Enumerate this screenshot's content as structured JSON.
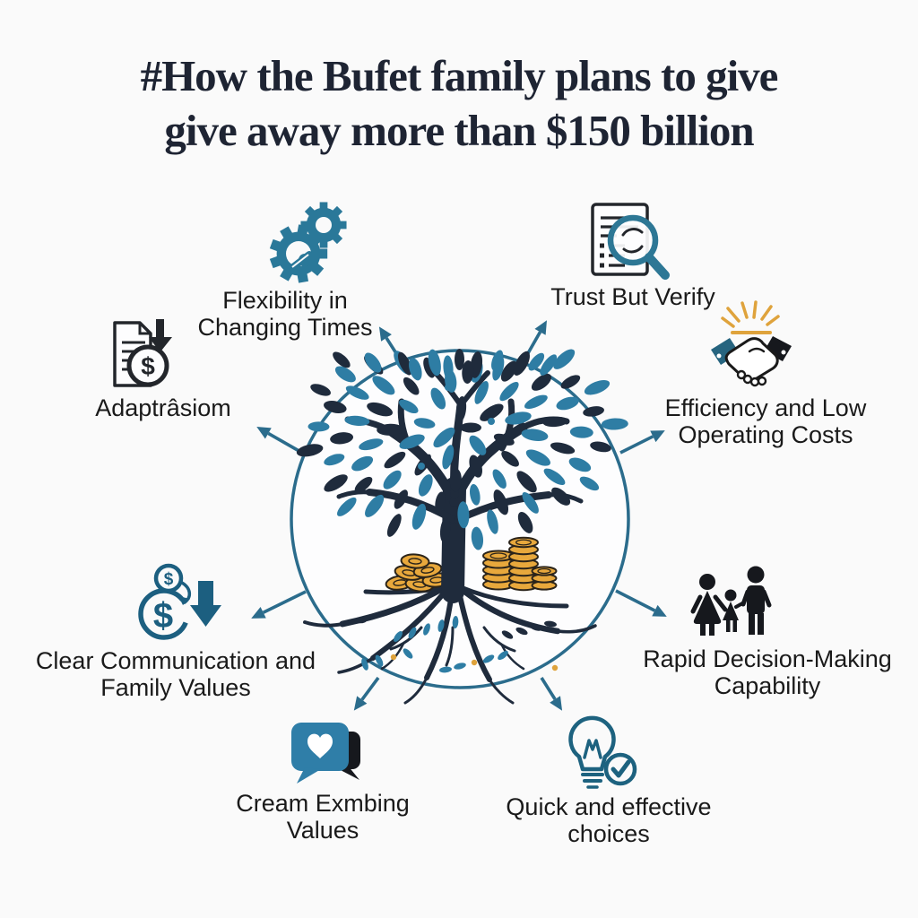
{
  "title": {
    "line1": "#How the Bufet family plans to give",
    "line2": "give away more than $150 billion"
  },
  "center": {
    "illustration": "money-tree-in-circle",
    "elements": [
      "tree with blue and navy leaves",
      "roots",
      "gold coin stacks"
    ]
  },
  "symbols": {
    "dollar": "$"
  },
  "colors": {
    "background": "#fafafa",
    "accent_teal": "#2b6c8c",
    "icon_teal": "#2a7899",
    "dark_teal": "#1c5f80",
    "dark_navy": "#1f2b3c",
    "leaf_teal": "#2e7da4",
    "gold": "#e8a83c",
    "ray_gold": "#dfa33c",
    "black": "#16181d",
    "title_color": "#1e2433",
    "label_color": "#1a1a1a"
  },
  "spokes": [
    {
      "id": "flexibility",
      "icon": "gears-icon",
      "lines": [
        "Flexibility in",
        "Changing Times"
      ]
    },
    {
      "id": "trust",
      "icon": "document-magnifier-icon",
      "lines": [
        "Trust But Verify"
      ]
    },
    {
      "id": "adaptation",
      "icon": "document-dollar-icon",
      "lines": [
        "Adaptrâsiom"
      ]
    },
    {
      "id": "efficiency",
      "icon": "handshake-icon",
      "lines": [
        "Efficiency and Low",
        "Operating Costs"
      ]
    },
    {
      "id": "communication",
      "icon": "dollar-transfer-icon",
      "lines": [
        "Clear Communication and",
        "Family Values"
      ]
    },
    {
      "id": "rapid",
      "icon": "family-icon",
      "lines": [
        "Rapid Decision-Making",
        "Capability"
      ]
    },
    {
      "id": "values",
      "icon": "chat-heart-icon",
      "lines": [
        "Cream Exmbing",
        "Values"
      ]
    },
    {
      "id": "choices",
      "icon": "lightbulb-check-icon",
      "lines": [
        "Quick and effective",
        "choices"
      ]
    }
  ]
}
